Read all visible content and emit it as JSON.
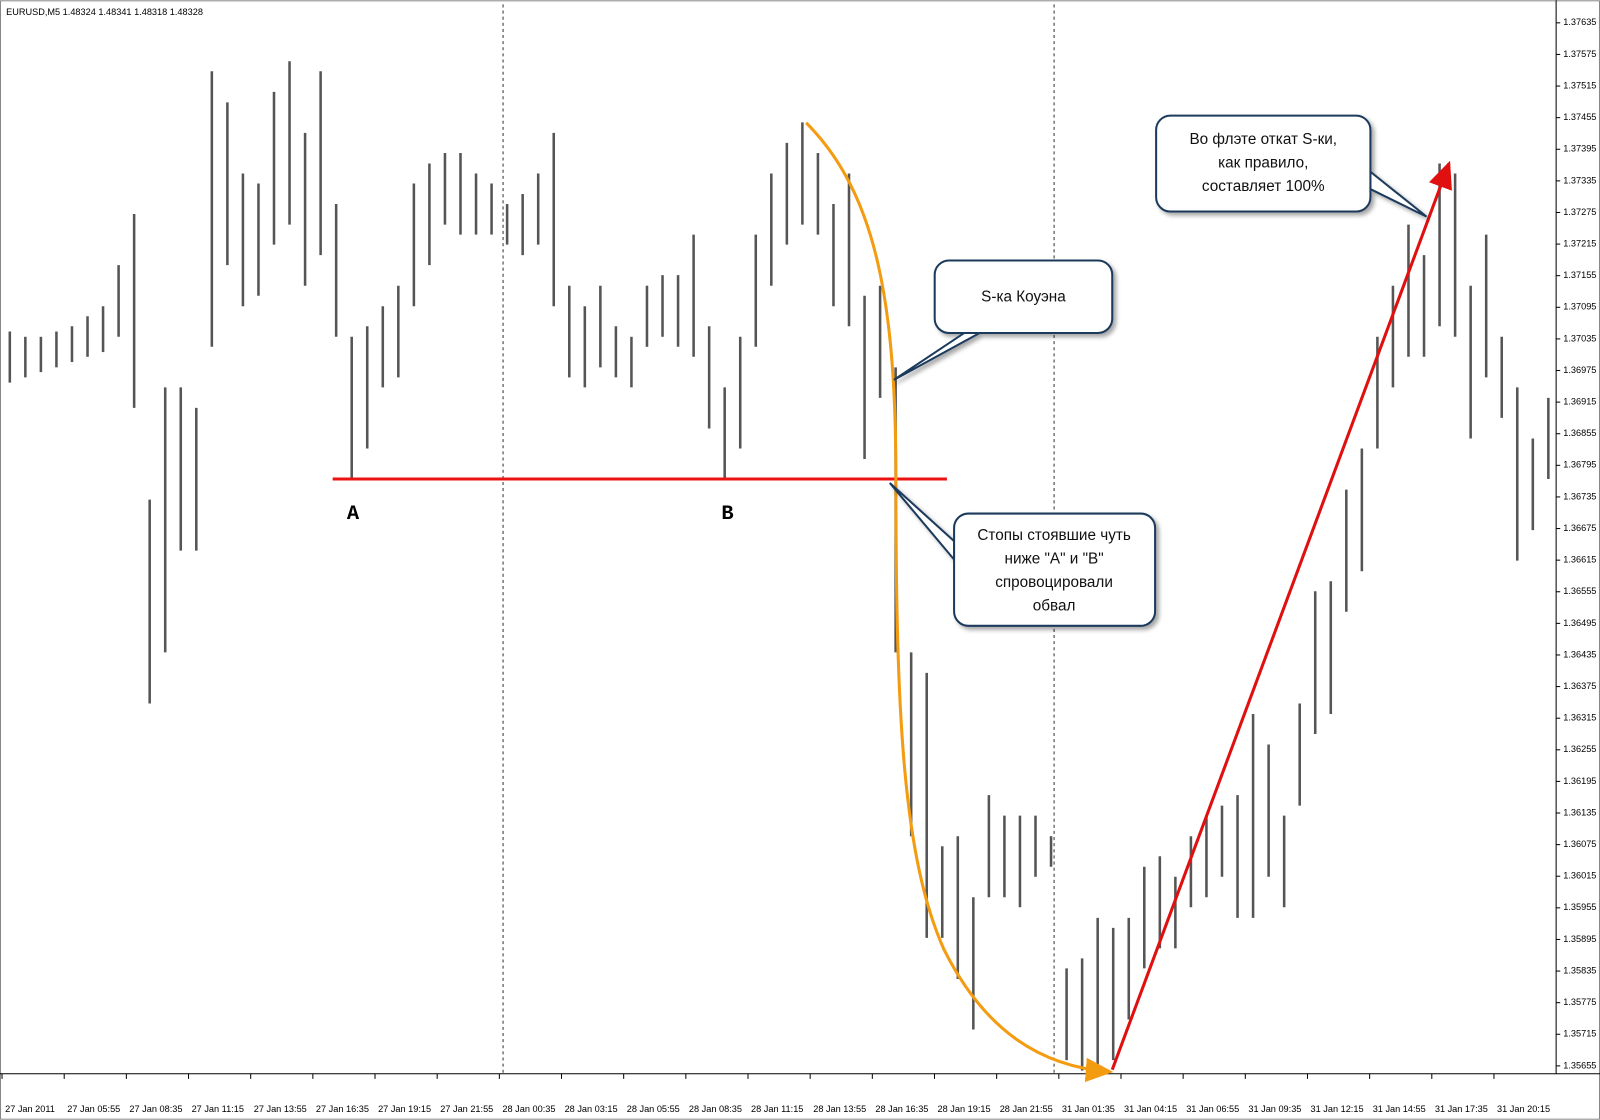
{
  "chart_data": {
    "type": "hl-bars",
    "title": "EURUSD,M5  1.48324 1.48341 1.48318 1.48328",
    "color": "#555555",
    "categories": [
      "27 Jan 2011",
      null,
      null,
      null,
      "27 Jan 05:55",
      null,
      null,
      null,
      "27 Jan 08:35",
      null,
      null,
      null,
      "27 Jan 11:15",
      null,
      null,
      null,
      "27 Jan 13:55",
      null,
      null,
      null,
      "27 Jan 16:35",
      null,
      null,
      null,
      "27 Jan 19:15",
      null,
      null,
      null,
      "27 Jan 21:55",
      null,
      null,
      null,
      "28 Jan 00:35",
      null,
      null,
      null,
      "28 Jan 03:15",
      null,
      null,
      null,
      "28 Jan 05:55",
      null,
      null,
      null,
      "28 Jan 08:35",
      null,
      null,
      null,
      "28 Jan 11:15",
      null,
      null,
      null,
      "28 Jan 13:55",
      null,
      null,
      null,
      "28 Jan 16:35",
      null,
      null,
      null,
      "28 Jan 19:15",
      null,
      null,
      null,
      "28 Jan 21:55",
      null,
      null,
      null,
      "31 Jan 01:35",
      null,
      null,
      null,
      "31 Jan 04:15",
      null,
      null,
      null,
      "31 Jan 06:55",
      null,
      null,
      null,
      "31 Jan 09:35",
      null,
      null,
      null,
      "31 Jan 12:15",
      null,
      null,
      null,
      "31 Jan 14:55",
      null,
      null,
      null,
      "31 Jan 17:35",
      null,
      null,
      null,
      "31 Jan 20:15",
      null,
      null,
      null
    ],
    "high": [
      1.37049,
      1.37039,
      1.37039,
      1.37049,
      1.37059,
      1.37078,
      1.37097,
      1.37175,
      1.37272,
      1.3673,
      1.36943,
      1.36943,
      1.36904,
      1.37543,
      1.37484,
      1.37349,
      1.3733,
      1.37504,
      1.37562,
      1.37426,
      1.37543,
      1.37291,
      1.37039,
      1.37059,
      1.37097,
      1.37136,
      1.3733,
      1.37368,
      1.37388,
      1.37388,
      1.37349,
      1.3733,
      1.37291,
      1.3731,
      1.37349,
      1.37426,
      1.37136,
      1.37097,
      1.37136,
      1.37059,
      1.37039,
      1.37136,
      1.37156,
      1.37156,
      1.37233,
      1.37059,
      1.36943,
      1.37039,
      1.37233,
      1.37349,
      1.37407,
      1.37446,
      1.37388,
      1.37291,
      1.37349,
      1.37117,
      1.37136,
      1.36981,
      1.3644,
      1.36401,
      1.36072,
      1.36091,
      1.35975,
      1.36169,
      1.3613,
      1.3613,
      1.3613,
      1.36091,
      1.3584,
      1.35859,
      1.35936,
      1.35917,
      1.35936,
      1.36033,
      1.36053,
      1.36014,
      1.36091,
      1.3613,
      1.36149,
      1.36169,
      1.36323,
      1.36265,
      1.3613,
      1.36343,
      1.36556,
      1.36575,
      1.36749,
      1.36827,
      1.37039,
      1.37136,
      1.37252,
      1.37194,
      1.37368,
      1.37349,
      1.37136,
      1.37233,
      1.37039,
      1.36943,
      1.36846,
      1.36923
    ],
    "low": [
      1.36952,
      1.36962,
      1.36972,
      1.36981,
      1.36991,
      1.37001,
      1.3701,
      1.37039,
      1.36904,
      1.36343,
      1.3644,
      1.36633,
      1.36633,
      1.3702,
      1.37175,
      1.37097,
      1.37117,
      1.37214,
      1.37252,
      1.37136,
      1.37194,
      1.37039,
      1.36769,
      1.36827,
      1.36943,
      1.36962,
      1.37097,
      1.37175,
      1.37252,
      1.37233,
      1.37233,
      1.37233,
      1.37214,
      1.37194,
      1.37214,
      1.37097,
      1.36962,
      1.36943,
      1.36981,
      1.36962,
      1.36943,
      1.3702,
      1.37039,
      1.3702,
      1.37001,
      1.36865,
      1.36769,
      1.36827,
      1.3702,
      1.37136,
      1.37214,
      1.37252,
      1.37233,
      1.37097,
      1.37059,
      1.36807,
      1.36923,
      1.3644,
      1.36091,
      1.35898,
      1.35898,
      1.3582,
      1.35724,
      1.35975,
      1.35975,
      1.35956,
      1.36014,
      1.36033,
      1.35666,
      1.35646,
      1.35646,
      1.35666,
      1.35743,
      1.3584,
      1.35878,
      1.35878,
      1.35956,
      1.35975,
      1.36014,
      1.35936,
      1.35936,
      1.36014,
      1.35956,
      1.36149,
      1.36285,
      1.36323,
      1.36517,
      1.36594,
      1.36827,
      1.36943,
      1.37001,
      1.37001,
      1.37059,
      1.37039,
      1.36846,
      1.36962,
      1.36885,
      1.36614,
      1.36672,
      1.36769
    ],
    "ylim": [
      1.3564,
      1.3767
    ],
    "yticks": [
      1.37635,
      1.37575,
      1.37515,
      1.37455,
      1.37395,
      1.37335,
      1.37275,
      1.37215,
      1.37155,
      1.37095,
      1.37035,
      1.36975,
      1.36915,
      1.36855,
      1.36795,
      1.36735,
      1.36675,
      1.36615,
      1.36555,
      1.36495,
      1.36435,
      1.36375,
      1.36315,
      1.36255,
      1.36195,
      1.36135,
      1.36075,
      1.36015,
      1.35955,
      1.35895,
      1.35835,
      1.35775,
      1.35715,
      1.35655
    ],
    "grid": false,
    "level": {
      "value": 1.36769,
      "color": "#ee1111"
    },
    "annotations": {
      "point_a": "A",
      "point_b": "B",
      "callout_1": [
        "S-ка Коуэна"
      ],
      "callout_2": [
        "Стопы стоявшие чуть",
        "ниже \"A\" и \"B\"",
        "спровоцировали",
        "обвал"
      ],
      "callout_3": [
        "Во флэте откат S-ки,",
        "как правило,",
        "составляет 100%"
      ]
    }
  }
}
